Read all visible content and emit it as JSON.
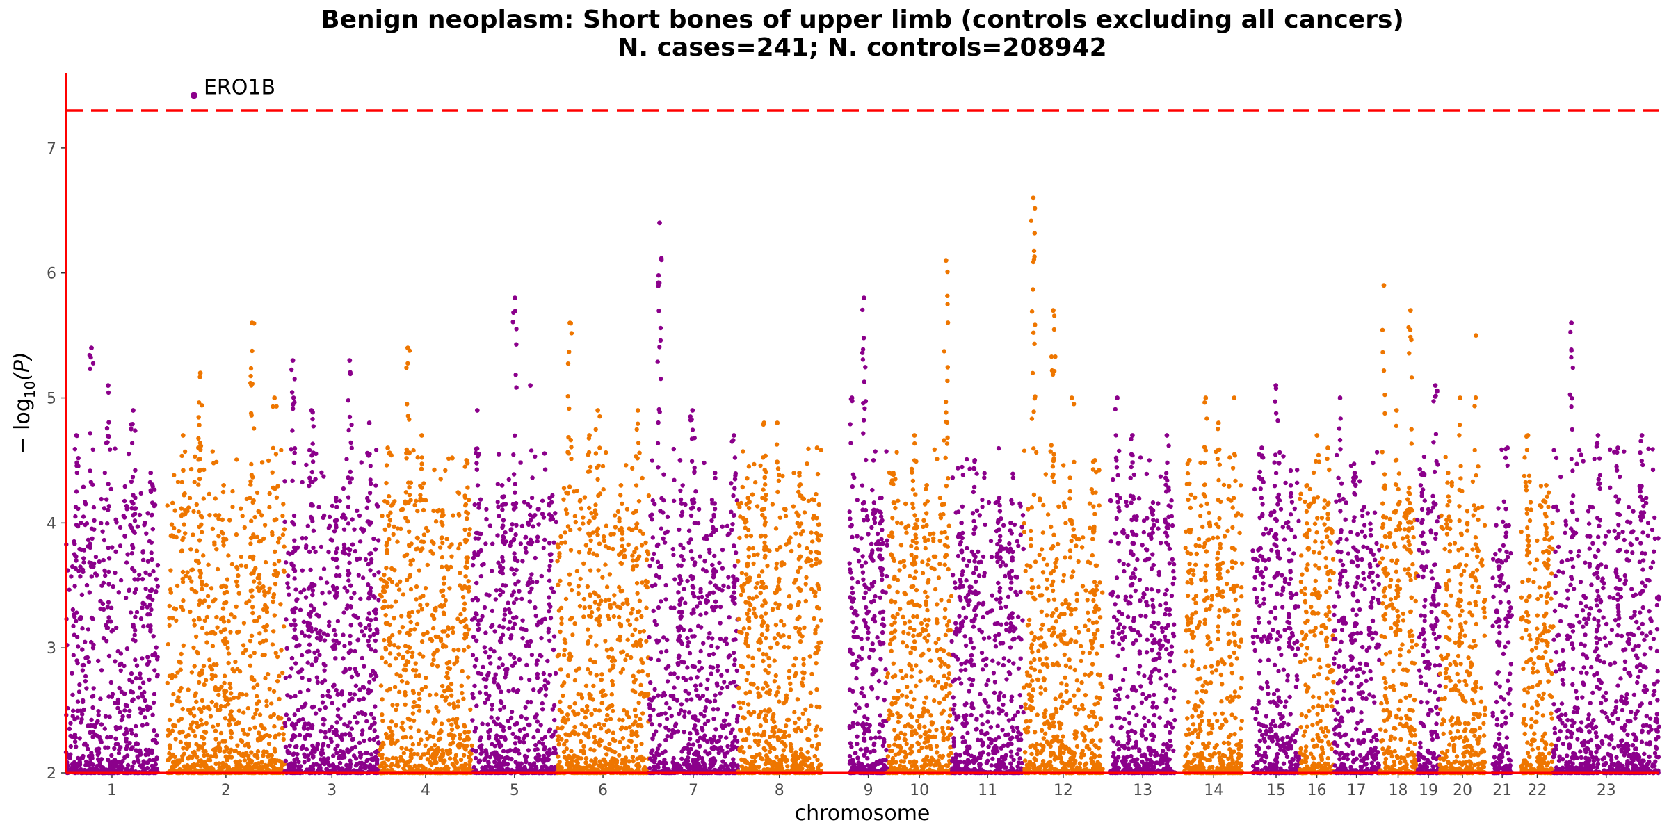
{
  "chart_data": {
    "type": "scatter",
    "title_line1": "Benign neoplasm: Short bones of upper limb (controls excluding all cancers)",
    "title_line2": "N. cases=241; N. controls=208942",
    "xlabel": "chromosome",
    "ylabel_prefix": "− log",
    "ylabel_sub": "10",
    "ylabel_suffix": "(P)",
    "ylim": [
      2,
      7.6
    ],
    "yticks": [
      2,
      3,
      4,
      5,
      6,
      7
    ],
    "significance_line": 7.3,
    "colors": {
      "odd": "#8B008B",
      "even": "#EE7600",
      "threshold": "#ff0000",
      "axis": "#ff0000"
    },
    "chromosomes": [
      {
        "label": "1",
        "peaks": [
          4.7,
          5.4,
          5.1,
          4.9,
          4.4
        ],
        "top": 5.4
      },
      {
        "label": "2",
        "peaks": [
          4.7,
          5.2,
          4.3,
          5.6,
          5.0
        ],
        "top": 5.6
      },
      {
        "label": "3",
        "peaks": [
          5.3,
          4.9,
          4.2,
          5.3,
          4.8
        ],
        "top": 5.3
      },
      {
        "label": "4",
        "peaks": [
          4.6,
          5.4,
          4.7,
          4.1,
          4.5
        ],
        "top": 5.4
      },
      {
        "label": "5",
        "peaks": [
          4.9,
          4.3,
          5.8,
          5.1,
          4.2
        ],
        "top": 5.8
      },
      {
        "label": "6",
        "peaks": [
          5.6,
          4.7,
          4.9,
          4.3,
          4.9
        ],
        "top": 5.6
      },
      {
        "label": "7",
        "peaks": [
          6.4,
          4.5,
          4.9,
          4.4,
          4.7
        ],
        "top": 6.4
      },
      {
        "label": "8",
        "peaks": [
          4.2,
          4.8,
          4.8,
          4.4,
          4.6
        ],
        "top": 4.8
      },
      {
        "label": "9",
        "peaks": [
          5.0,
          5.8,
          4.5,
          4.2
        ],
        "top": 5.8
      },
      {
        "label": "10",
        "peaks": [
          4.4,
          4.7,
          4.3,
          6.1
        ],
        "top": 6.1
      },
      {
        "label": "11",
        "peaks": [
          4.0,
          4.5,
          4.2,
          4.0
        ],
        "top": 4.5
      },
      {
        "label": "12",
        "peaks": [
          6.6,
          5.7,
          5.0,
          4.5
        ],
        "top": 6.6
      },
      {
        "label": "13",
        "peaks": [
          5.0,
          4.7,
          4.1,
          4.7
        ],
        "top": 5.0
      },
      {
        "label": "14",
        "peaks": [
          4.5,
          5.0,
          4.8,
          5.0
        ],
        "top": 5.0
      },
      {
        "label": "15",
        "peaks": [
          4.6,
          5.1,
          4.3
        ],
        "top": 5.1
      },
      {
        "label": "16",
        "peaks": [
          4.3,
          4.7,
          4.6
        ],
        "top": 4.7
      },
      {
        "label": "17",
        "peaks": [
          5.0,
          4.4,
          3.9
        ],
        "top": 5.0
      },
      {
        "label": "18",
        "peaks": [
          5.9,
          4.9,
          5.7
        ],
        "top": 5.9
      },
      {
        "label": "19",
        "peaks": [
          4.4,
          5.1
        ],
        "top": 5.1
      },
      {
        "label": "20",
        "peaks": [
          4.4,
          5.0,
          5.5
        ],
        "top": 5.5
      },
      {
        "label": "21",
        "peaks": [
          3.7,
          4.6
        ],
        "top": 4.6
      },
      {
        "label": "22",
        "peaks": [
          4.7,
          4.3
        ],
        "top": 4.7
      },
      {
        "label": "23",
        "peaks": [
          5.6,
          4.7,
          4.6,
          4.7
        ],
        "top": 5.6
      }
    ],
    "annotation": {
      "label": "ERO1B",
      "chromosome": "1",
      "y": 7.42
    }
  }
}
